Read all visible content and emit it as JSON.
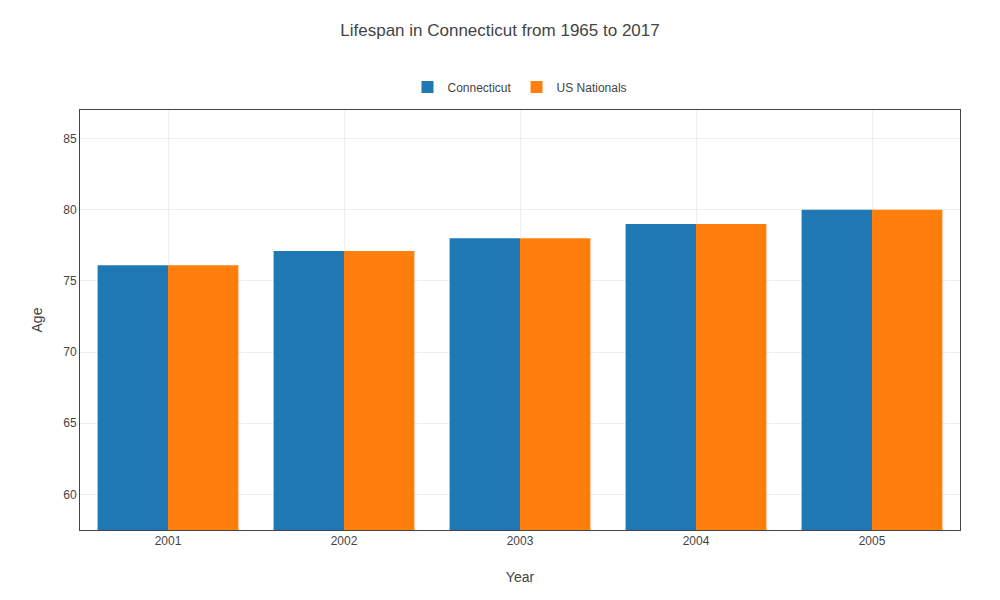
{
  "chart_data": {
    "type": "bar",
    "title": "Lifespan in Connecticut from 1965 to 2017",
    "xlabel": "Year",
    "ylabel": "Age",
    "categories": [
      "2001",
      "2002",
      "2003",
      "2004",
      "2005"
    ],
    "series": [
      {
        "name": "Connecticut",
        "values": [
          76.1,
          77.1,
          78.0,
          79.0,
          80.0
        ]
      },
      {
        "name": "US Nationals",
        "values": [
          76.1,
          77.1,
          78.0,
          79.0,
          80.0
        ]
      }
    ],
    "ylim": [
      57.5,
      87
    ],
    "yticks": [
      60,
      65,
      70,
      75,
      80,
      85
    ],
    "grid": true,
    "legend": "top"
  }
}
